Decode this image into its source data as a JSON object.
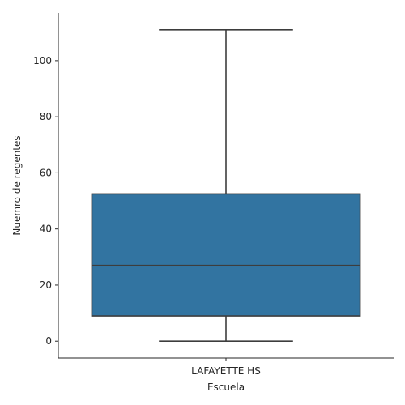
{
  "chart_data": {
    "type": "box",
    "xlabel": "Escuela",
    "ylabel": "Nuemro de regentes",
    "categories": [
      "LAFAYETTE HS"
    ],
    "boxes": [
      {
        "category": "LAFAYETTE HS",
        "whisker_low": 0,
        "q1": 9,
        "median": 27,
        "q3": 52.5,
        "whisker_high": 111
      }
    ],
    "yticks": [
      0,
      20,
      40,
      60,
      80,
      100
    ],
    "ylim": [
      -6,
      117
    ],
    "grid": false,
    "colors": {
      "box_fill": "#3274a1",
      "line": "#3d3d3d",
      "axis": "#262626"
    }
  }
}
